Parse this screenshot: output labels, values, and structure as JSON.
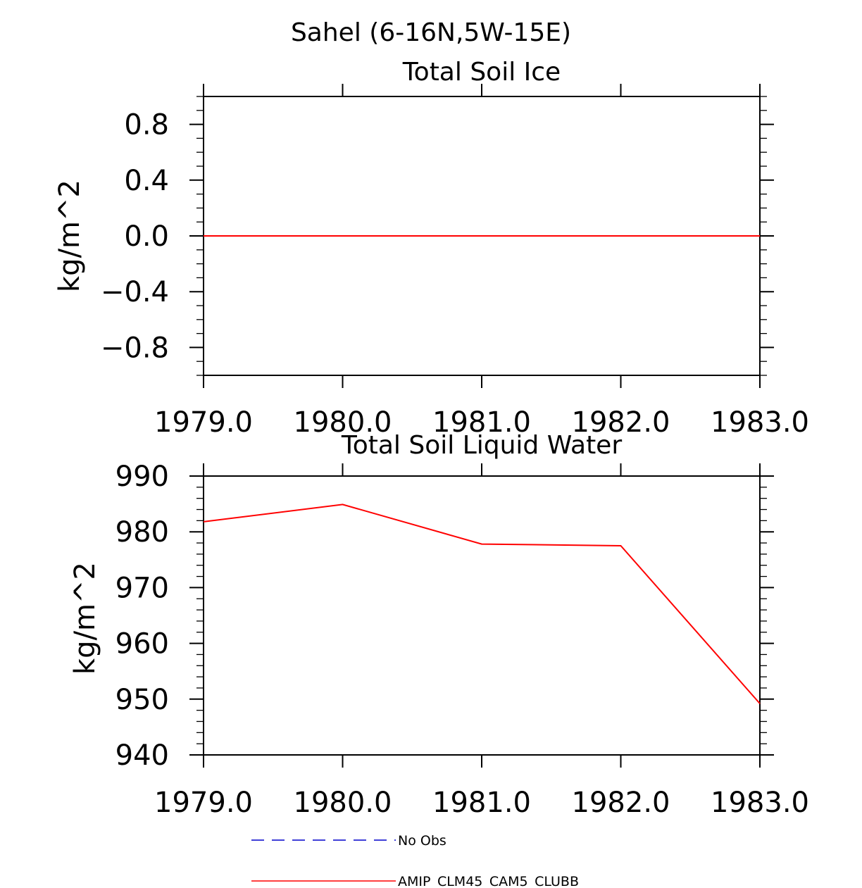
{
  "figure_title": "Sahel (6-16N,5W-15E)",
  "chart_data": [
    {
      "type": "line",
      "title": "Total Soil Ice",
      "xlabel": "",
      "ylabel": "kg/m^2",
      "xlim": [
        1979.0,
        1983.0
      ],
      "ylim": [
        -1.0,
        1.0
      ],
      "xticks": [
        1979.0,
        1980.0,
        1981.0,
        1982.0,
        1983.0
      ],
      "xtick_labels": [
        "1979.0",
        "1980.0",
        "1981.0",
        "1982.0",
        "1983.0"
      ],
      "yticks": [
        -0.8,
        -0.4,
        0.0,
        0.4,
        0.8
      ],
      "ytick_labels": [
        "−0.8",
        "−0.4",
        "0.0",
        "0.4",
        "0.8"
      ],
      "y_minor_step": 0.1,
      "series": [
        {
          "name": "AMIP_CLM45_CAM5_CLUBB",
          "color": "#ff0000",
          "x": [
            1979.0,
            1980.0,
            1981.0,
            1982.0,
            1983.0
          ],
          "values": [
            0.0,
            0.0,
            0.0,
            0.0,
            0.0
          ]
        }
      ]
    },
    {
      "type": "line",
      "title": "Total Soil Liquid Water",
      "xlabel": "",
      "ylabel": "kg/m^2",
      "xlim": [
        1979.0,
        1983.0
      ],
      "ylim": [
        940,
        990
      ],
      "xticks": [
        1979.0,
        1980.0,
        1981.0,
        1982.0,
        1983.0
      ],
      "xtick_labels": [
        "1979.0",
        "1980.0",
        "1981.0",
        "1982.0",
        "1983.0"
      ],
      "yticks": [
        940,
        950,
        960,
        970,
        980,
        990
      ],
      "ytick_labels": [
        "940",
        "950",
        "960",
        "970",
        "980",
        "990"
      ],
      "y_minor_step": 2,
      "series": [
        {
          "name": "AMIP_CLM45_CAM5_CLUBB",
          "color": "#ff0000",
          "x": [
            1979.0,
            1980.0,
            1981.0,
            1982.0,
            1983.0
          ],
          "values": [
            981.8,
            984.9,
            977.8,
            977.5,
            949.2
          ]
        }
      ]
    }
  ],
  "legend": {
    "entries": [
      {
        "label": "No Obs",
        "color": "#0000cc",
        "style": "dashed"
      },
      {
        "label": "AMIP_CLM45_CAM5_CLUBB",
        "color": "#ff0000",
        "style": "solid"
      }
    ]
  }
}
